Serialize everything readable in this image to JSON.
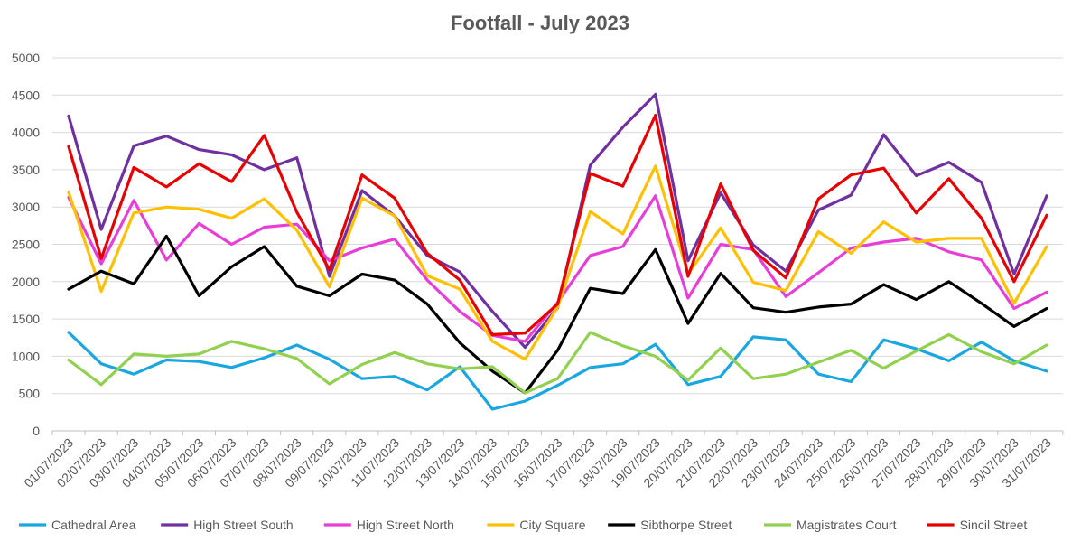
{
  "chart_data": {
    "type": "line",
    "title": "Footfall - July 2023",
    "xlabel": "",
    "ylabel": "",
    "ylim": [
      0,
      5000
    ],
    "yticks": [
      0,
      500,
      1000,
      1500,
      2000,
      2500,
      3000,
      3500,
      4000,
      4500,
      5000
    ],
    "grid": true,
    "legend_position": "bottom",
    "categories": [
      "01/07/2023",
      "02/07/2023",
      "03/07/2023",
      "04/07/2023",
      "05/07/2023",
      "06/07/2023",
      "07/07/2023",
      "08/07/2023",
      "09/07/2023",
      "10/07/2023",
      "11/07/2023",
      "12/07/2023",
      "13/07/2023",
      "14/07/2023",
      "15/07/2023",
      "16/07/2023",
      "17/07/2023",
      "18/07/2023",
      "19/07/2023",
      "20/07/2023",
      "21/07/2023",
      "22/07/2023",
      "23/07/2023",
      "24/07/2023",
      "25/07/2023",
      "26/07/2023",
      "27/07/2023",
      "28/07/2023",
      "29/07/2023",
      "30/07/2023",
      "31/07/2023"
    ],
    "series": [
      {
        "name": "Cathedral Area",
        "color": "#1AA7E0",
        "values": [
          1320,
          900,
          760,
          950,
          930,
          850,
          980,
          1150,
          960,
          700,
          730,
          550,
          860,
          290,
          400,
          610,
          850,
          900,
          1160,
          620,
          730,
          1260,
          1220,
          760,
          660,
          1220,
          1100,
          940,
          1190,
          940,
          800
        ]
      },
      {
        "name": "High Street South",
        "color": "#7030A0",
        "values": [
          4220,
          2700,
          3820,
          3950,
          3770,
          3700,
          3500,
          3660,
          2070,
          3220,
          2880,
          2350,
          2130,
          1600,
          1120,
          1650,
          3560,
          4070,
          4510,
          2280,
          3190,
          2490,
          2140,
          2960,
          3160,
          3970,
          3420,
          3600,
          3330,
          2100,
          3150
        ]
      },
      {
        "name": "High Street North",
        "color": "#E83ED8",
        "values": [
          3130,
          2240,
          3090,
          2290,
          2780,
          2500,
          2730,
          2770,
          2280,
          2450,
          2570,
          2020,
          1600,
          1280,
          1200,
          1720,
          2350,
          2470,
          3150,
          1780,
          2500,
          2430,
          1800,
          2120,
          2450,
          2530,
          2580,
          2400,
          2290,
          1640,
          1860
        ]
      },
      {
        "name": "City Square",
        "color": "#FFC000",
        "values": [
          3200,
          1870,
          2920,
          3000,
          2970,
          2850,
          3110,
          2690,
          1930,
          3120,
          2880,
          2080,
          1900,
          1200,
          960,
          1660,
          2940,
          2640,
          3550,
          2100,
          2720,
          1990,
          1880,
          2670,
          2380,
          2800,
          2530,
          2580,
          2580,
          1710,
          2470
        ]
      },
      {
        "name": "Sibthorpe Street",
        "color": "#000000",
        "values": [
          1900,
          2140,
          1970,
          2610,
          1810,
          2200,
          2470,
          1940,
          1810,
          2100,
          2020,
          1700,
          1180,
          800,
          510,
          1080,
          1910,
          1840,
          2430,
          1440,
          2110,
          1650,
          1590,
          1660,
          1700,
          1960,
          1760,
          2000,
          1710,
          1400,
          1640
        ]
      },
      {
        "name": "Magistrates Court",
        "color": "#92D050",
        "values": [
          950,
          620,
          1030,
          1000,
          1030,
          1200,
          1100,
          970,
          630,
          890,
          1050,
          900,
          830,
          860,
          510,
          700,
          1320,
          1140,
          1000,
          680,
          1110,
          700,
          760,
          920,
          1080,
          840,
          1070,
          1290,
          1060,
          900,
          1150
        ]
      },
      {
        "name": "Sincil Street",
        "color": "#E60000",
        "values": [
          3810,
          2310,
          3530,
          3270,
          3580,
          3340,
          3960,
          2930,
          2160,
          3430,
          3120,
          2380,
          2020,
          1290,
          1310,
          1700,
          3450,
          3280,
          4230,
          2070,
          3310,
          2420,
          2050,
          3110,
          3430,
          3520,
          2920,
          3380,
          2850,
          2000,
          2890
        ]
      }
    ]
  }
}
